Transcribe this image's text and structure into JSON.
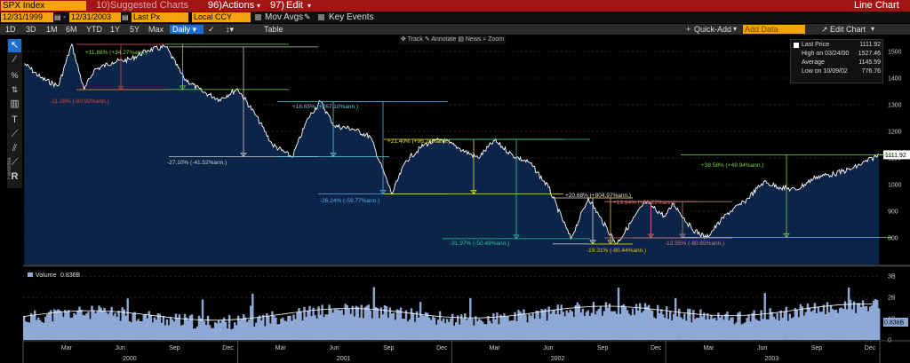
{
  "toolbar": {
    "ticker": "SPX Index",
    "suggested_charts": "Suggested Charts",
    "suggested_prefix": "10)",
    "actions": "Actions",
    "actions_prefix": "96)",
    "edit": "Edit",
    "edit_prefix": "97)",
    "title": "Line Chart"
  },
  "params": {
    "start_date": "12/31/1999",
    "end_date": "12/31/2003",
    "field": "Last Px",
    "currency": "Local CCY",
    "mov_avgs": "Mov Avgs",
    "key_events": "Key Events"
  },
  "periods": {
    "items": [
      "1D",
      "3D",
      "1M",
      "6M",
      "YTD",
      "1Y",
      "5Y",
      "Max"
    ],
    "frequency": "Daily",
    "table": "Table",
    "quick_add": "Quick-Add",
    "add_data_placeholder": "Add Data",
    "edit_chart": "Edit Chart"
  },
  "annotation_bar": {
    "track": "Track",
    "annotate": "Annotate",
    "news": "News",
    "zoom": "Zoom"
  },
  "sidebar": {
    "favorites": "Favorites"
  },
  "legend": {
    "last_price_label": "Last Price",
    "last_price_value": "1111.92",
    "high_label": "High on 03/24/00",
    "high_value": "1527.46",
    "average_label": "Average",
    "average_value": "1145.59",
    "low_label": "Low on 10/09/02",
    "low_value": "776.76"
  },
  "colors": {
    "price_fill": "#0c2447",
    "volume_fill": "#8ea9d6",
    "toolbar_red": "#a31515",
    "input_orange": "#f4a30f"
  },
  "chart_data": [
    {
      "type": "area",
      "series": [
        {
          "name": "SPX Index"
        }
      ],
      "x": [
        "2000-01-03",
        "2000-02-01",
        "2000-03-01",
        "2000-03-24",
        "2000-04-14",
        "2000-05-01",
        "2000-06-01",
        "2000-07-01",
        "2000-08-01",
        "2000-09-01",
        "2000-10-01",
        "2000-11-01",
        "2000-12-01",
        "2001-01-01",
        "2001-02-01",
        "2001-03-01",
        "2001-04-04",
        "2001-05-01",
        "2001-05-22",
        "2001-06-15",
        "2001-07-15",
        "2001-08-15",
        "2001-09-21",
        "2001-10-15",
        "2001-11-15",
        "2001-12-15",
        "2002-01-15",
        "2002-02-15",
        "2002-03-15",
        "2002-04-15",
        "2002-05-15",
        "2002-06-15",
        "2002-07-23",
        "2002-08-22",
        "2002-09-10",
        "2002-10-09",
        "2002-11-27",
        "2002-12-31",
        "2003-01-14",
        "2003-02-14",
        "2003-03-11",
        "2003-04-15",
        "2003-05-15",
        "2003-06-17",
        "2003-07-15",
        "2003-08-11",
        "2003-09-15",
        "2003-10-15",
        "2003-11-15",
        "2003-12-31"
      ],
      "values": [
        1455,
        1400,
        1370,
        1527,
        1356,
        1430,
        1460,
        1470,
        1505,
        1517,
        1400,
        1350,
        1320,
        1360,
        1260,
        1150,
        1103,
        1250,
        1312,
        1220,
        1210,
        1180,
        965,
        1090,
        1150,
        1170,
        1135,
        1100,
        1165,
        1110,
        1080,
        990,
        797,
        950,
        880,
        777,
        936,
        880,
        930,
        835,
        800,
        890,
        935,
        1010,
        990,
        980,
        1030,
        1040,
        1060,
        1112
      ],
      "ylim": [
        700,
        1560
      ],
      "yticks": [
        800,
        900,
        1000,
        1100,
        1200,
        1300,
        1400,
        1500
      ],
      "last_label": "1111.92",
      "annotations": [
        {
          "text": "+11.88% (+34.27%ann.)",
          "color": "#7fd34a"
        },
        {
          "text": "-11.28% (-80.92%ann.)",
          "color": "#e04040"
        },
        {
          "text": "-27.10% (-41.52%ann.)",
          "color": "#cccccc"
        },
        {
          "text": "+18.65% (+267.10%ann.)",
          "color": "#5fd0d8"
        },
        {
          "text": "-26.24% (-59.77%ann.)",
          "color": "#5fa8e8"
        },
        {
          "text": "+21.40% (+96.24%ann.)",
          "color": "#e8e840"
        },
        {
          "text": "-31.97% (-50.49%ann.)",
          "color": "#30c0a0"
        },
        {
          "text": "+20.68% (+804.97%ann.)",
          "color": "#e0e0e0"
        },
        {
          "text": "-19.31% (-80.44%ann.)",
          "color": "#e8c020"
        },
        {
          "text": "+19.94% (+98.22%ann.)",
          "color": "#e07070"
        },
        {
          "text": "-13.55% (-80.65%ann.)",
          "color": "#c08080"
        },
        {
          "text": "+38.58% (+49.94%ann.)",
          "color": "#7fd34a"
        }
      ]
    },
    {
      "type": "bar",
      "series": [
        {
          "name": "Volume"
        }
      ],
      "title": "Volume",
      "last_value": "0.836B",
      "last_label": "0.836B",
      "yticks_labels": [
        "3B",
        "2B",
        "1B",
        "0"
      ],
      "yticks": [
        3,
        2,
        1,
        0
      ],
      "ylim": [
        0,
        3.3
      ]
    }
  ],
  "x_axis": {
    "month_labels": [
      "Mar",
      "Jun",
      "Sep",
      "Dec",
      "Mar",
      "Jun",
      "Sep",
      "Dec",
      "Mar",
      "Jun",
      "Sep",
      "Dec",
      "Mar",
      "Jun",
      "Sep",
      "Dec"
    ],
    "year_labels": [
      "2000",
      "2001",
      "2002",
      "2003"
    ]
  }
}
